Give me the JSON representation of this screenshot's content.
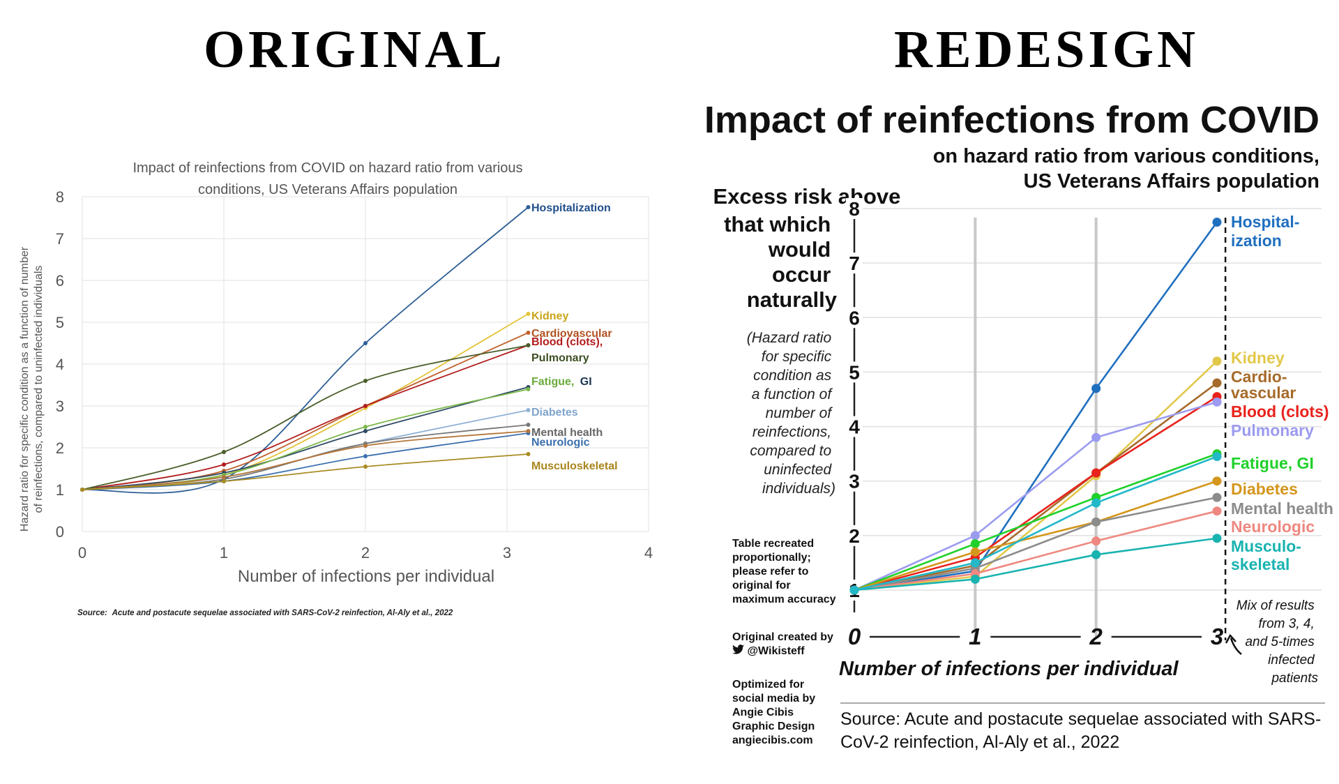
{
  "headings": {
    "left": "ORIGINAL",
    "right": "REDESIGN"
  },
  "original": {
    "title_line1": "Impact of reinfections from COVID on hazard ratio from various",
    "title_line2": "conditions, US Veterans Affairs population",
    "ylabel_line1": "Hazard ratio for specific condition as a function of number",
    "ylabel_line2": "of reinfections, compared to uninfected individuals",
    "xlabel": "Number of infections per individual",
    "source_prefix": "Source:",
    "source_text": "Acute and postacute sequelae associated with SARS-CoV-2 reinfection, Al-Aly et al., 2022",
    "label_blood": "Blood (clots),",
    "label_pulmonary": "Pulmonary",
    "label_fatigue": "Fatigue,",
    "label_gi": "GI"
  },
  "redesign": {
    "title": "Impact of reinfections from COVID",
    "subtitle_line1": "on hazard ratio from various conditions,",
    "subtitle_line2": "US Veterans Affairs population",
    "excess": [
      "Excess risk above",
      "that which",
      "would",
      "occur",
      "naturally"
    ],
    "hazard_note": [
      "(Hazard ratio",
      "for specific",
      "condition as",
      "a function of",
      "number of",
      "reinfections,",
      "compared to",
      "uninfected",
      "individuals)"
    ],
    "xlabel": "Number of infections per individual",
    "mix_note": [
      "Mix of results",
      "from 3, 4,",
      "and 5-times",
      "infected",
      "patients"
    ],
    "credit_recreated": "Table recreated proportionally; please refer to original for maximum accuracy",
    "credit_original": "Original created by",
    "credit_handle": "@Wikisteff",
    "twitter_icon": "twitter-bird-icon",
    "credit_optimized": "Optimized for social media by Angie Cibis Graphic Design angiecibis.com",
    "source": "Source: Acute and postacute sequelae associated with SARS-CoV-2 reinfection, Al-Aly et al., 2022"
  },
  "chart_data": [
    {
      "type": "line",
      "title": "Impact of reinfections from COVID on hazard ratio from various conditions, US Veterans Affairs population",
      "xlabel": "Number of infections per individual",
      "ylabel": "Hazard ratio for specific condition as a function of number of reinfections, compared to uninfected individuals",
      "xlim": [
        0,
        4
      ],
      "ylim": [
        0,
        8
      ],
      "xticks": [
        0,
        1,
        2,
        3,
        4
      ],
      "yticks": [
        0,
        1,
        2,
        3,
        4,
        5,
        6,
        7,
        8
      ],
      "grid": true,
      "x": [
        0,
        1,
        2,
        3.15
      ],
      "series": [
        {
          "name": "Hospitalization",
          "label": "Hospitalization",
          "color": "#2e5f96",
          "label_color": "#1f4e8a",
          "values": [
            1.0,
            1.25,
            4.5,
            7.75
          ]
        },
        {
          "name": "Kidney",
          "label": "Kidney",
          "color": "#e3c43a",
          "label_color": "#c9a51b",
          "values": [
            1.0,
            1.35,
            2.95,
            5.2
          ]
        },
        {
          "name": "Cardiovascular",
          "label": "Cardiovascular",
          "color": "#c0632e",
          "label_color": "#b25322",
          "values": [
            1.0,
            1.45,
            3.0,
            4.75
          ]
        },
        {
          "name": "Blood (clots)",
          "label": "",
          "color": "#b21c1c",
          "label_color": "#b21c1c",
          "values": [
            1.0,
            1.6,
            3.0,
            4.45
          ]
        },
        {
          "name": "Pulmonary",
          "label": "",
          "color": "#4a5e2a",
          "label_color": "#3d4f22",
          "values": [
            1.0,
            1.9,
            3.6,
            4.45
          ]
        },
        {
          "name": "Fatigue, GI",
          "label": "",
          "color": "#2e4a63",
          "label_color": "#6aaa3a",
          "values": [
            1.0,
            1.4,
            2.4,
            3.45
          ]
        },
        {
          "name": "GI",
          "label": "",
          "color": "#7bb84a",
          "label_color": "#1a3550",
          "values": [
            1.0,
            1.35,
            2.5,
            3.4
          ]
        },
        {
          "name": "Diabetes",
          "label": "Diabetes",
          "color": "#8fb2d6",
          "label_color": "#7ea4cc",
          "values": [
            1.0,
            1.3,
            2.1,
            2.9
          ]
        },
        {
          "name": "Mental health",
          "label": "Mental health",
          "color": "#777777",
          "label_color": "#666666",
          "values": [
            1.0,
            1.25,
            2.1,
            2.55
          ]
        },
        {
          "name": "Neurologic",
          "label": "Neurologic",
          "color": "#3b6fae",
          "label_color": "#3b6fae",
          "values": [
            1.0,
            1.2,
            1.8,
            2.35
          ]
        },
        {
          "name": "Brown",
          "label": "",
          "color": "#b5773a",
          "label_color": "#b5773a",
          "values": [
            1.0,
            1.3,
            2.05,
            2.4
          ]
        },
        {
          "name": "Musculoskeletal",
          "label": "Musculoskeletal",
          "color": "#a88c22",
          "label_color": "#a8861c",
          "values": [
            1.0,
            1.2,
            1.55,
            1.85
          ]
        }
      ]
    },
    {
      "type": "line",
      "title": "Impact of reinfections from COVID",
      "subtitle": "on hazard ratio from various conditions, US Veterans Affairs population",
      "xlabel": "Number of infections per individual",
      "ylabel": "Excess risk above that which would occur naturally",
      "xlim": [
        0,
        3.15
      ],
      "ylim": [
        0.85,
        8.2
      ],
      "xticks": [
        0,
        1,
        2,
        3
      ],
      "yticks": [
        1,
        2,
        3,
        4,
        5,
        6,
        7,
        8
      ],
      "grid": true,
      "x": [
        0,
        1,
        2,
        3
      ],
      "series": [
        {
          "name": "Hospitalization",
          "label": [
            "Hospital-",
            "ization"
          ],
          "color": "#1f6fbf",
          "values": [
            1.0,
            1.35,
            4.7,
            7.75
          ]
        },
        {
          "name": "Kidney",
          "label": [
            "Kidney"
          ],
          "color": "#e2c84a",
          "values": [
            1.0,
            1.25,
            3.1,
            5.2
          ]
        },
        {
          "name": "Cardiovascular",
          "label": [
            "Cardio-",
            "vascular"
          ],
          "color": "#a66b2a",
          "values": [
            1.0,
            1.45,
            3.15,
            4.8
          ]
        },
        {
          "name": "Blood (clots)",
          "label": [
            "Blood (clots)"
          ],
          "color": "#e8221c",
          "values": [
            1.0,
            1.6,
            3.15,
            4.55
          ]
        },
        {
          "name": "Pulmonary",
          "label": [
            "Pulmonary"
          ],
          "color": "#9b9bf0",
          "values": [
            1.0,
            2.0,
            3.8,
            4.45
          ]
        },
        {
          "name": "Fatigue, GI",
          "label": [
            "Fatigue, GI"
          ],
          "color": "#1fd12a",
          "values": [
            1.0,
            1.85,
            2.7,
            3.5
          ]
        },
        {
          "name": "Diabetes",
          "label": [
            "Diabetes"
          ],
          "color": "#d4961c",
          "values": [
            1.0,
            1.7,
            2.25,
            3.0
          ]
        },
        {
          "name": "Mental health",
          "label": [
            "Mental health"
          ],
          "color": "#8c8c8c",
          "values": [
            1.0,
            1.4,
            2.25,
            2.7
          ]
        },
        {
          "name": "Neurologic",
          "label": [
            "Neurologic"
          ],
          "color": "#ee8880",
          "values": [
            1.0,
            1.3,
            1.9,
            2.45
          ]
        },
        {
          "name": "Musculoskeletal",
          "label": [
            "Musculo-",
            "skeletal"
          ],
          "color": "#19b3b0",
          "values": [
            1.0,
            1.2,
            1.65,
            1.95
          ]
        },
        {
          "name": "Series 11",
          "label": [],
          "color": "#22b8c8",
          "values": [
            1.0,
            1.5,
            2.6,
            3.45
          ]
        }
      ]
    }
  ]
}
